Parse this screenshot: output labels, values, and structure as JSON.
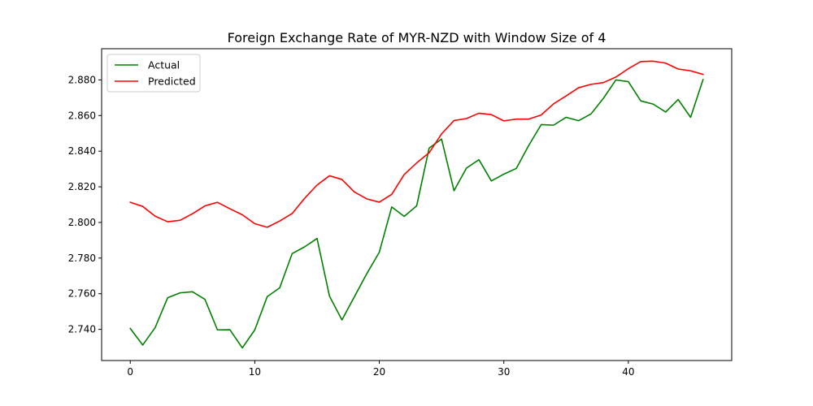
{
  "chart_data": {
    "type": "line",
    "title": "Foreign Exchange Rate of MYR-NZD with Window Size of 4",
    "xlabel": "",
    "ylabel": "",
    "xlim": [
      -2.3,
      48.3
    ],
    "ylim": [
      2.7225,
      2.8975
    ],
    "xticks": [
      0,
      10,
      20,
      30,
      40
    ],
    "yticks": [
      2.74,
      2.76,
      2.78,
      2.8,
      2.82,
      2.84,
      2.86,
      2.88
    ],
    "ytick_format": 3,
    "grid": false,
    "legend_position": "top-left",
    "x": [
      0,
      1,
      2,
      3,
      4,
      5,
      6,
      7,
      8,
      9,
      10,
      11,
      12,
      13,
      14,
      15,
      16,
      17,
      18,
      19,
      20,
      21,
      22,
      23,
      24,
      25,
      26,
      27,
      28,
      29,
      30,
      31,
      32,
      33,
      34,
      35,
      36,
      37,
      38,
      39,
      40,
      41,
      42,
      43,
      44,
      45,
      46
    ],
    "series": [
      {
        "name": "Actual",
        "color": "#008000",
        "values": [
          2.7405,
          2.7312,
          2.741,
          2.7577,
          2.7605,
          2.7611,
          2.7568,
          2.7397,
          2.7398,
          2.7296,
          2.7397,
          2.7584,
          2.7633,
          2.7825,
          2.7863,
          2.791,
          2.7586,
          2.7453,
          2.7583,
          2.7713,
          2.7833,
          2.8087,
          2.8034,
          2.8093,
          2.8417,
          2.8468,
          2.8178,
          2.8305,
          2.8352,
          2.8233,
          2.8271,
          2.8303,
          2.8432,
          2.8549,
          2.8546,
          2.859,
          2.8571,
          2.8609,
          2.8697,
          2.88,
          2.879,
          2.8682,
          2.8664,
          2.862,
          2.869,
          2.859,
          2.8802
        ]
      },
      {
        "name": "Predicted",
        "color": "#ff0000",
        "values": [
          2.8113,
          2.809,
          2.8035,
          2.8004,
          2.8012,
          2.8049,
          2.8093,
          2.8113,
          2.8077,
          2.8043,
          2.7993,
          2.7973,
          2.8008,
          2.805,
          2.8135,
          2.821,
          2.8262,
          2.8241,
          2.8171,
          2.8132,
          2.8114,
          2.8158,
          2.8269,
          2.8334,
          2.8391,
          2.8497,
          2.8572,
          2.8583,
          2.8613,
          2.8605,
          2.857,
          2.858,
          2.858,
          2.8603,
          2.8666,
          2.871,
          2.8756,
          2.8775,
          2.8785,
          2.8816,
          2.8863,
          2.8903,
          2.8905,
          2.8894,
          2.8861,
          2.8851,
          2.8831
        ]
      }
    ]
  }
}
